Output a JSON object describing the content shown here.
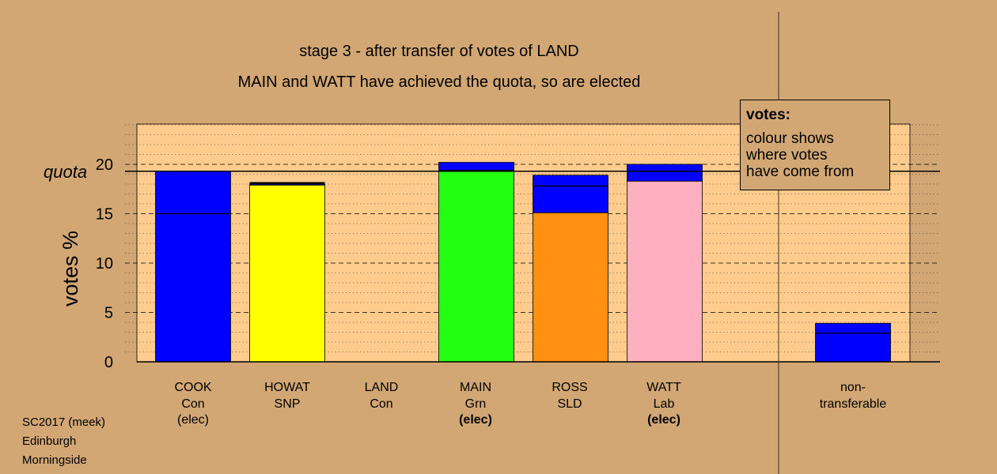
{
  "header": {
    "stage_title": "stage 3 - after transfer of votes of LAND",
    "status_text": "MAIN and WATT have achieved the quota, so are elected"
  },
  "legend": {
    "title": "votes:",
    "lines": [
      "colour shows",
      "where votes",
      "have come from"
    ]
  },
  "footer": {
    "lines": [
      "SC2017 (meek)",
      "Edinburgh",
      "Morningside"
    ]
  },
  "colors": {
    "background": "#D2A774",
    "plot_background": "#FFCC8E",
    "Con": "#0000FF",
    "SNP": "#FFFF00",
    "Grn": "#22FF11",
    "SLD": "#FF9010",
    "Lab": "#FFB0C0"
  },
  "chart_data": {
    "type": "bar",
    "stacked": true,
    "ylabel": "votes %",
    "ylim": [
      0,
      24
    ],
    "yticks": [
      0,
      5,
      10,
      15,
      20
    ],
    "quota": {
      "label": "quota",
      "value": 19.3
    },
    "grid": "dashed at ticks, dotted minor",
    "legend_position": "top-right",
    "candidates": [
      {
        "name": "COOK",
        "party": "Con",
        "status": "(elec)",
        "status_bold": false,
        "inner_line": 15.0,
        "segments": [
          {
            "from": "COOK",
            "color": "#0000FF",
            "value": 19.3
          }
        ]
      },
      {
        "name": "HOWAT",
        "party": "SNP",
        "status": "",
        "status_bold": false,
        "inner_line": null,
        "segments": [
          {
            "from": "HOWAT",
            "color": "#FFFF00",
            "value": 17.9
          },
          {
            "from": "COOK",
            "color": "#0000FF",
            "value": 0.1
          },
          {
            "from": "LAND",
            "color": "#000000",
            "value": 0.2
          }
        ]
      },
      {
        "name": "LAND",
        "party": "Con",
        "status": "",
        "status_bold": false,
        "inner_line": null,
        "segments": []
      },
      {
        "name": "MAIN",
        "party": "Grn",
        "status": "(elec)",
        "status_bold": true,
        "inner_line": null,
        "segments": [
          {
            "from": "MAIN",
            "color": "#22FF11",
            "value": 19.4
          },
          {
            "from": "COOK",
            "color": "#0000FF",
            "value": 0.8
          }
        ]
      },
      {
        "name": "ROSS",
        "party": "SLD",
        "status": "",
        "status_bold": false,
        "inner_line": 17.8,
        "segments": [
          {
            "from": "ROSS",
            "color": "#FF9010",
            "value": 15.1
          },
          {
            "from": "COOK",
            "color": "#0000FF",
            "value": 3.8
          }
        ]
      },
      {
        "name": "WATT",
        "party": "Lab",
        "status": "(elec)",
        "status_bold": true,
        "inner_line": null,
        "segments": [
          {
            "from": "WATT",
            "color": "#FFB0C0",
            "value": 18.3
          },
          {
            "from": "COOK",
            "color": "#0000FF",
            "value": 1.7
          }
        ]
      }
    ],
    "non_transferable": {
      "label_lines": [
        "non-",
        "transferable"
      ],
      "value": 3.9,
      "inner_line": 2.9,
      "color": "#0000FF"
    }
  }
}
